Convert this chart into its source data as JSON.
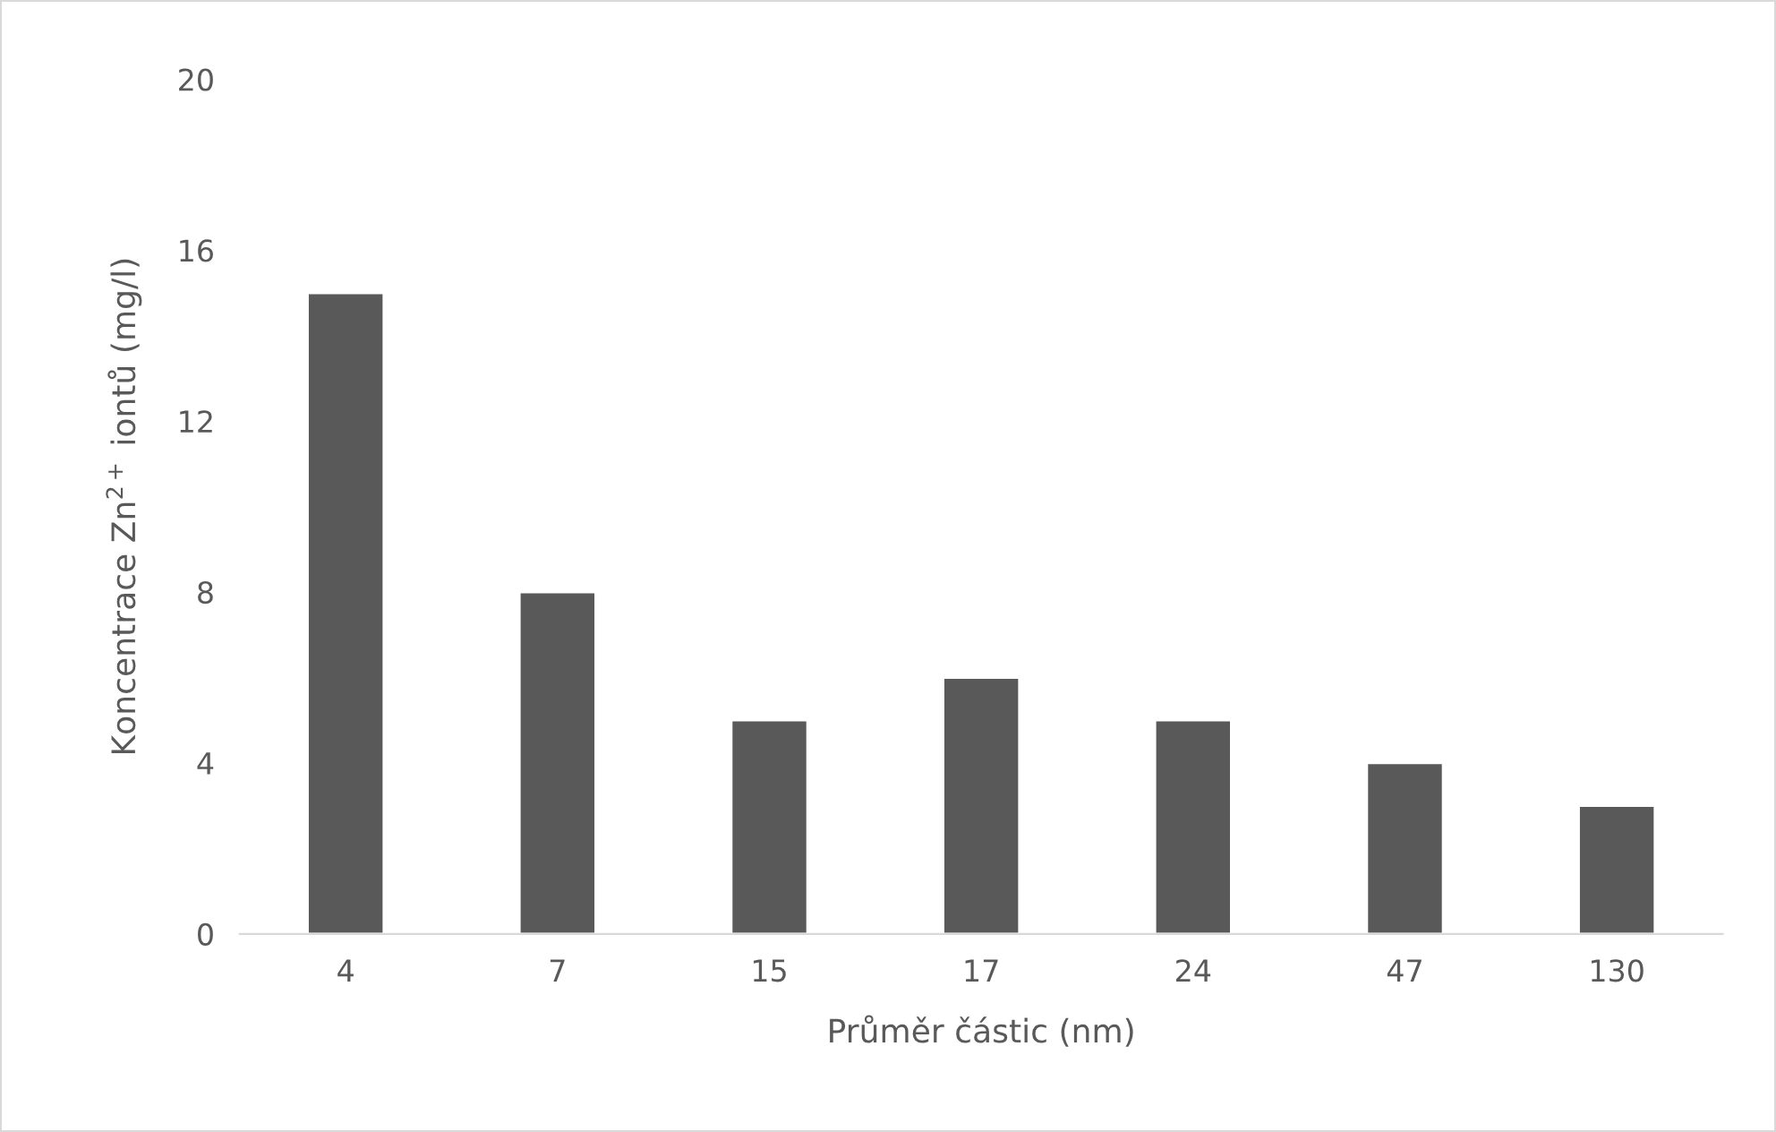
{
  "chart_data": {
    "type": "bar",
    "xlabel": "Průměr částic (nm)",
    "ylabel": "Koncentrace Zn$^{2+}$ iontů (mg/l)",
    "categories": [
      "4",
      "7",
      "15",
      "17",
      "24",
      "47",
      "130"
    ],
    "values": [
      15,
      8,
      5,
      6,
      5,
      4,
      3
    ],
    "color": "#595959",
    "ylim": [
      0,
      20
    ],
    "yticks": [
      0,
      4,
      8,
      12,
      16,
      20
    ],
    "grid": false,
    "legend": false
  }
}
